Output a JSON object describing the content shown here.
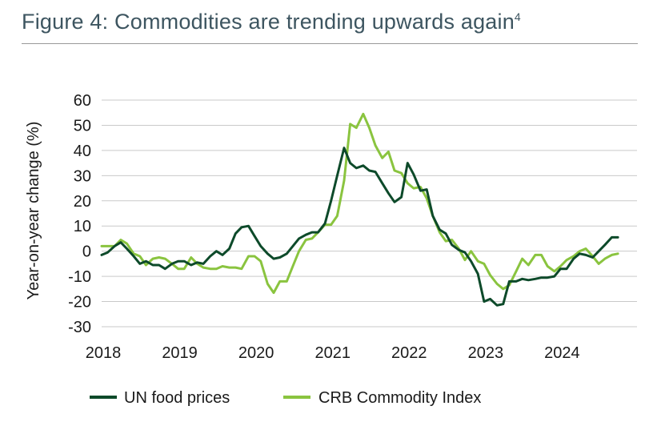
{
  "title": "Figure 4: Commodities are trending upwards again",
  "title_superscript": "4",
  "chart_data": {
    "type": "line",
    "title": "Figure 4: Commodities are trending upwards again",
    "xlabel": "",
    "ylabel": "Year-on-year change (%)",
    "ylim": [
      -30,
      60
    ],
    "yticks": [
      60,
      50,
      40,
      30,
      20,
      10,
      0,
      -10,
      -20,
      -30
    ],
    "xlim": [
      2018,
      2025
    ],
    "xticks": [
      "2018",
      "2019",
      "2020",
      "2021",
      "2022",
      "2023",
      "2024"
    ],
    "grid": true,
    "legend": "bottom",
    "series": [
      {
        "name": "UN food prices",
        "color": "#0d4a2a",
        "x": [
          2018.0,
          2018.08,
          2018.17,
          2018.25,
          2018.33,
          2018.42,
          2018.5,
          2018.58,
          2018.67,
          2018.75,
          2018.83,
          2018.92,
          2019.0,
          2019.08,
          2019.17,
          2019.25,
          2019.33,
          2019.42,
          2019.5,
          2019.58,
          2019.67,
          2019.75,
          2019.83,
          2019.92,
          2020.0,
          2020.08,
          2020.17,
          2020.25,
          2020.33,
          2020.42,
          2020.5,
          2020.58,
          2020.67,
          2020.75,
          2020.83,
          2020.92,
          2021.0,
          2021.08,
          2021.17,
          2021.25,
          2021.33,
          2021.42,
          2021.5,
          2021.58,
          2021.67,
          2021.75,
          2021.83,
          2021.92,
          2022.0,
          2022.08,
          2022.17,
          2022.25,
          2022.33,
          2022.42,
          2022.5,
          2022.58,
          2022.67,
          2022.75,
          2022.83,
          2022.92,
          2023.0,
          2023.08,
          2023.17,
          2023.25,
          2023.33,
          2023.42,
          2023.5,
          2023.58,
          2023.67,
          2023.75,
          2023.83,
          2023.92,
          2024.0,
          2024.08,
          2024.17,
          2024.25,
          2024.33,
          2024.42,
          2024.5,
          2024.58,
          2024.67,
          2024.75
        ],
        "values": [
          -1.5,
          -0.5,
          2,
          3.5,
          1,
          -2,
          -5,
          -4,
          -5.5,
          -5.5,
          -7,
          -5,
          -4,
          -4,
          -5.5,
          -4.5,
          -5,
          -2,
          0,
          -1.5,
          1,
          7,
          9.5,
          10,
          6,
          2,
          -1,
          -3,
          -2.5,
          -1,
          2,
          5,
          6.5,
          7.5,
          7.5,
          11,
          20,
          30,
          41,
          35,
          33,
          34,
          32,
          31.5,
          27,
          23,
          19.5,
          21.5,
          35,
          30.5,
          24,
          24.5,
          14,
          8.5,
          7,
          2.5,
          0.5,
          -0.5,
          -4,
          -9,
          -20,
          -19,
          -21.5,
          -21,
          -12,
          -12,
          -11,
          -11.5,
          -11,
          -10.5,
          -10.5,
          -10,
          -7,
          -7,
          -3,
          -1,
          -1.5,
          -2.5,
          0,
          2.5,
          5.5,
          5.5
        ]
      },
      {
        "name": "CRB Commodity Index",
        "color": "#8ac43f",
        "x": [
          2018.0,
          2018.08,
          2018.17,
          2018.25,
          2018.33,
          2018.42,
          2018.5,
          2018.58,
          2018.67,
          2018.75,
          2018.83,
          2018.92,
          2019.0,
          2019.08,
          2019.17,
          2019.25,
          2019.33,
          2019.42,
          2019.5,
          2019.58,
          2019.67,
          2019.75,
          2019.83,
          2019.92,
          2020.0,
          2020.08,
          2020.17,
          2020.25,
          2020.33,
          2020.42,
          2020.5,
          2020.58,
          2020.67,
          2020.75,
          2020.83,
          2020.92,
          2021.0,
          2021.08,
          2021.17,
          2021.25,
          2021.33,
          2021.42,
          2021.5,
          2021.58,
          2021.67,
          2021.75,
          2021.83,
          2021.92,
          2022.0,
          2022.08,
          2022.17,
          2022.25,
          2022.33,
          2022.42,
          2022.5,
          2022.58,
          2022.67,
          2022.75,
          2022.83,
          2022.92,
          2023.0,
          2023.08,
          2023.17,
          2023.25,
          2023.33,
          2023.42,
          2023.5,
          2023.58,
          2023.67,
          2023.75,
          2023.83,
          2023.92,
          2024.0,
          2024.08,
          2024.17,
          2024.25,
          2024.33,
          2024.42,
          2024.5,
          2024.58,
          2024.67,
          2024.75
        ],
        "values": [
          2,
          2,
          2,
          4.5,
          3,
          -1,
          -2,
          -5.5,
          -3,
          -2.5,
          -3,
          -5,
          -7,
          -7,
          -2.5,
          -5,
          -6.5,
          -7,
          -7,
          -6,
          -6.5,
          -6.5,
          -7,
          -2,
          -2,
          -4,
          -13,
          -16.5,
          -12,
          -12,
          -6,
          0,
          4.5,
          5,
          7.5,
          10.5,
          10.5,
          14,
          28,
          50.5,
          49,
          54.5,
          49,
          42,
          37,
          39.5,
          32,
          31,
          27,
          25,
          25.5,
          21,
          14,
          7.5,
          4,
          4.5,
          1,
          -3.5,
          0,
          -4,
          -5,
          -9.5,
          -13,
          -15,
          -13.5,
          -8,
          -3,
          -5.5,
          -1.5,
          -1.5,
          -6,
          -8,
          -6,
          -3.5,
          -2,
          0,
          1,
          -2,
          -5,
          -3,
          -1.5,
          -1
        ]
      }
    ]
  }
}
